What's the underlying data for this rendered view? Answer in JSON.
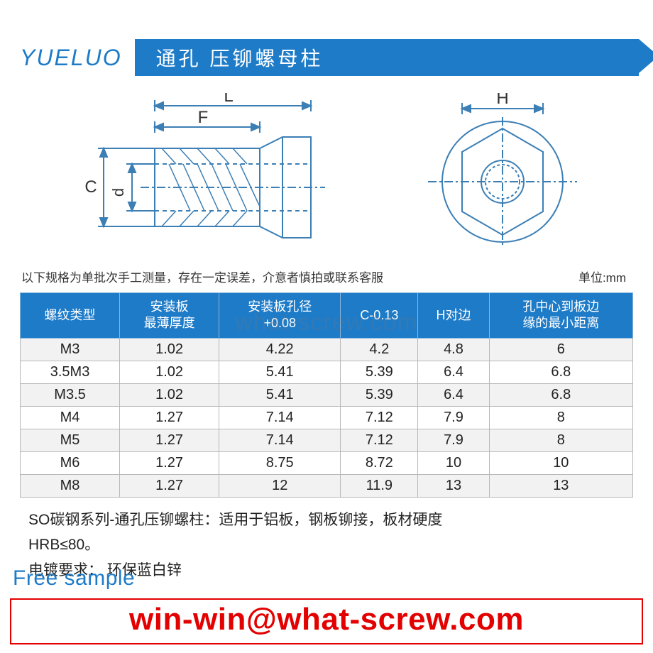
{
  "header": {
    "logo": "YUELUO",
    "title": "通孔 压铆螺母柱"
  },
  "diagram": {
    "labels": {
      "L": "L",
      "F": "F",
      "C": "C",
      "d": "d",
      "H": "H"
    },
    "stroke_color": "#3c7fb5",
    "hatch_color": "#3c7fb5"
  },
  "note": {
    "text": "以下规格为单批次手工测量，存在一定误差，介意者慎拍或联系客服",
    "unit": "单位:mm"
  },
  "table": {
    "header_bg": "#1e7bc8",
    "header_color": "#ffffff",
    "border_color": "#b8b8b8",
    "row_bg": "#f2f2f2",
    "row_alt_bg": "#ffffff",
    "columns": [
      "螺纹类型",
      "安装板\n最薄厚度",
      "安装板孔径\n+0.08",
      "C-0.13",
      "H对边",
      "孔中心到板边\n缘的最小距离"
    ],
    "rows": [
      [
        "M3",
        "1.02",
        "4.22",
        "4.2",
        "4.8",
        "6"
      ],
      [
        "3.5M3",
        "1.02",
        "5.41",
        "5.39",
        "6.4",
        "6.8"
      ],
      [
        "M3.5",
        "1.02",
        "5.41",
        "5.39",
        "6.4",
        "6.8"
      ],
      [
        "M4",
        "1.27",
        "7.14",
        "7.12",
        "7.9",
        "8"
      ],
      [
        "M5",
        "1.27",
        "7.14",
        "7.12",
        "7.9",
        "8"
      ],
      [
        "M6",
        "1.27",
        "8.75",
        "8.72",
        "10",
        "10"
      ],
      [
        "M8",
        "1.27",
        "12",
        "11.9",
        "13",
        "13"
      ]
    ]
  },
  "description": {
    "line1": "SO碳钢系列-通孔压铆螺柱：适用于铝板，钢板铆接，板材硬度",
    "line2": "HRB≤80。",
    "line3": "电镀要求：  环保蓝白锌"
  },
  "overlay": {
    "free_sample": "Free sample",
    "email": "win-win@what-screw.com",
    "watermark": "what-screw.com",
    "email_color": "#e30000",
    "sample_color": "#1e7bc8"
  }
}
